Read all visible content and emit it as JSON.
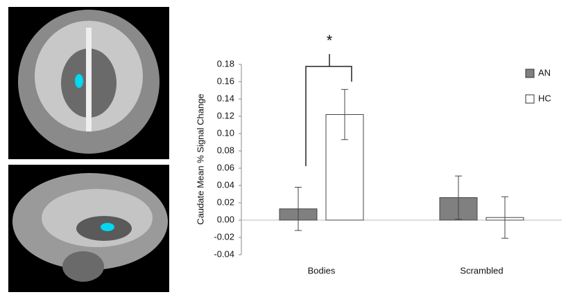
{
  "chart_data": {
    "type": "bar",
    "y_label": "Caudate Mean % Signal Change",
    "annotation": "*",
    "categories": [
      "Bodies",
      "Scrambled"
    ],
    "series": [
      {
        "name": "AN",
        "color": "#808080",
        "values": [
          0.013,
          0.026
        ],
        "errors": [
          0.025,
          0.025
        ]
      },
      {
        "name": "HC",
        "color": "#ffffff",
        "values": [
          0.122,
          0.003
        ],
        "errors": [
          0.029,
          0.024
        ]
      }
    ],
    "ylim": [
      -0.04,
      0.18
    ],
    "yticks": [
      0.18,
      0.16,
      0.14,
      0.12,
      {
        "value": 0.1,
        "label": "0.10"
      },
      0.08,
      0.06,
      0.04,
      0.02,
      {
        "value": 0,
        "label": "0.00"
      },
      -0.02,
      -0.04
    ],
    "legend": "top-right"
  }
}
